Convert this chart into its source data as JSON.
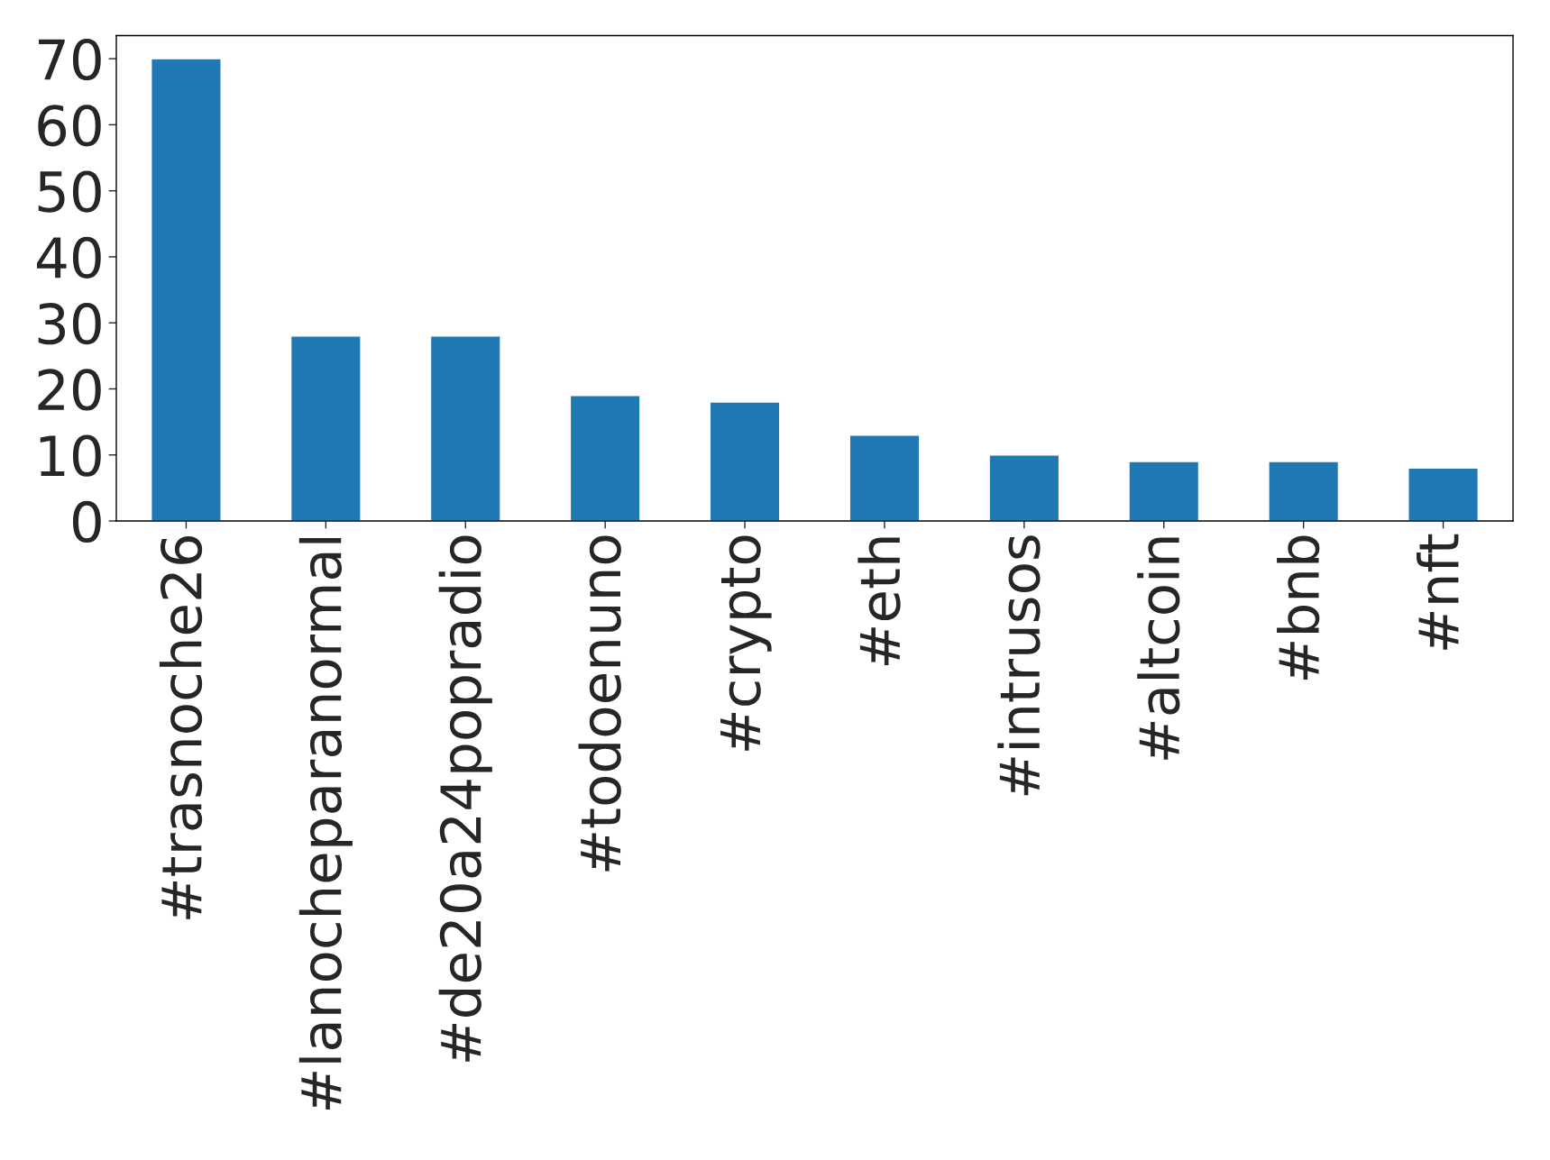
{
  "chart_data": {
    "type": "bar",
    "categories": [
      "#trasnoche26",
      "#lanocheparanormal",
      "#de20a24popradio",
      "#todoenuno",
      "#crypto",
      "#eth",
      "#intrusos",
      "#altcoin",
      "#bnb",
      "#nft"
    ],
    "values": [
      70,
      28,
      28,
      19,
      18,
      13,
      10,
      9,
      9,
      8
    ],
    "color": "#1f77b4",
    "ylim": [
      0,
      73.5
    ],
    "yticks": [
      0,
      10,
      20,
      30,
      40,
      50,
      60,
      70
    ],
    "grid": false,
    "legend": false
  }
}
